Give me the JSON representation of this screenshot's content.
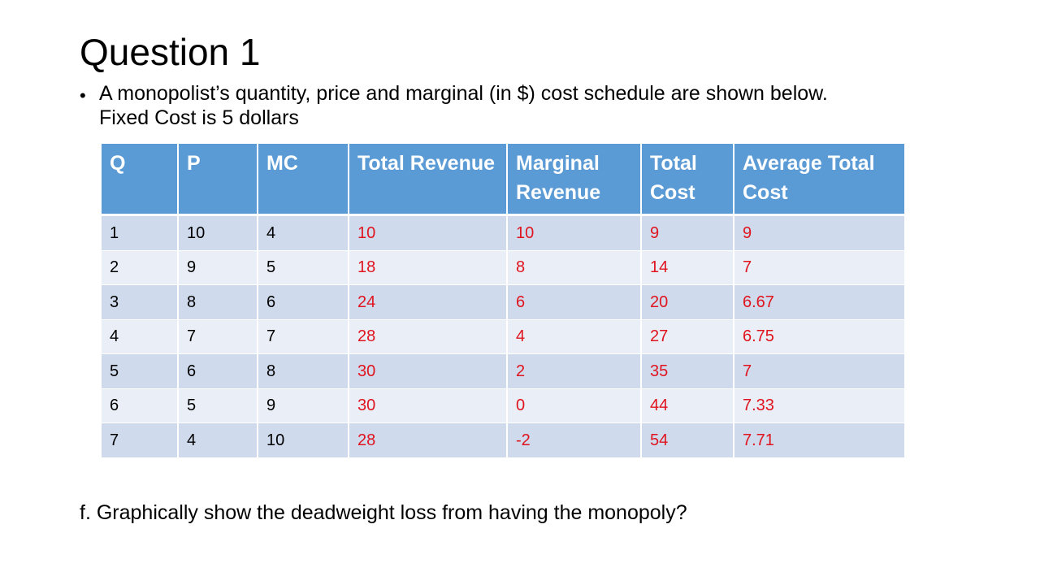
{
  "slide": {
    "title": "Question 1",
    "bullet_line1": "A monopolist’s quantity, price and marginal (in $) cost schedule are shown below.",
    "bullet_line2": "Fixed Cost is 5 dollars",
    "question": "f. Graphically show the deadweight loss from having the monopoly?"
  },
  "table": {
    "headers": [
      "Q",
      "P",
      "MC",
      "Total Revenue",
      "Marginal Revenue",
      "Total Cost",
      "Average Total Cost"
    ],
    "rows": [
      [
        "1",
        "10",
        "4",
        "10",
        "10",
        "9",
        "9"
      ],
      [
        "2",
        "9",
        "5",
        "18",
        "8",
        "14",
        "7"
      ],
      [
        "3",
        "8",
        "6",
        "24",
        "6",
        "20",
        "6.67"
      ],
      [
        "4",
        "7",
        "7",
        "28",
        "4",
        "27",
        "6.75"
      ],
      [
        "5",
        "6",
        "8",
        "30",
        "2",
        "35",
        "7"
      ],
      [
        "6",
        "5",
        "9",
        "30",
        "0",
        "44",
        "7.33"
      ],
      [
        "7",
        "4",
        "10",
        "28",
        "-2",
        "54",
        "7.71"
      ]
    ]
  },
  "colors": {
    "header_bg": "#5b9bd5",
    "row_dark": "#cfdaec",
    "row_light": "#e9eef7",
    "answer_text": "#e0141e"
  }
}
